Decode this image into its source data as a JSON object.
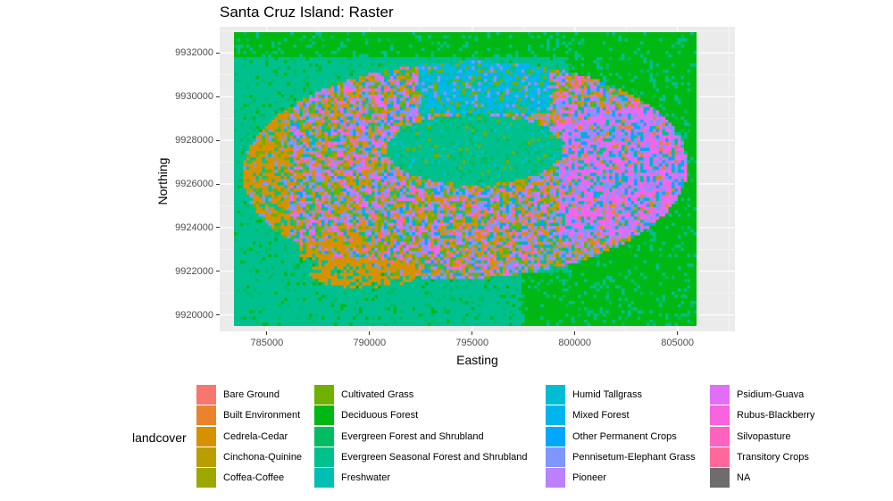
{
  "title": "Santa Cruz Island: Raster",
  "xlabel": "Easting",
  "ylabel": "Northing",
  "legend_title": "landcover",
  "axes": {
    "xlim": [
      782700,
      807800
    ],
    "ylim": [
      9919250,
      9933200
    ],
    "x_ticks": [
      785000,
      790000,
      795000,
      800000,
      805000
    ],
    "x_tick_labels": [
      "785000",
      "790000",
      "795000",
      "800000",
      "805000"
    ],
    "y_ticks": [
      9920000,
      9922000,
      9924000,
      9926000,
      9928000,
      9930000,
      9932000
    ],
    "y_tick_labels": [
      "9920000",
      "9922000",
      "9924000",
      "9926000",
      "9928000",
      "9930000",
      "9932000"
    ],
    "raster_extent": {
      "x": [
        783400,
        805800
      ],
      "y": [
        9919600,
        9932950
      ]
    }
  },
  "colors": {
    "panel_bg": "#ebebeb",
    "grid": "#ffffff"
  },
  "legend": [
    {
      "label": "Bare Ground",
      "color": "#F8766D"
    },
    {
      "label": "Built Environment",
      "color": "#E9842C"
    },
    {
      "label": "Cedrela-Cedar",
      "color": "#D69100"
    },
    {
      "label": "Cinchona-Quinine",
      "color": "#BC9D00"
    },
    {
      "label": "Coffea-Coffee",
      "color": "#9CA700"
    },
    {
      "label": "Cultivated Grass",
      "color": "#6FB000"
    },
    {
      "label": "Deciduous Forest",
      "color": "#00B813"
    },
    {
      "label": "Evergreen Forest and Shrubland",
      "color": "#00BD61"
    },
    {
      "label": "Evergreen Seasonal Forest and Shrubland",
      "color": "#00C08E"
    },
    {
      "label": "Freshwater",
      "color": "#00C0B4"
    },
    {
      "label": "Humid Tallgrass",
      "color": "#00BDD4"
    },
    {
      "label": "Mixed Forest",
      "color": "#00B5EE"
    },
    {
      "label": "Other Permanent Crops",
      "color": "#00A7FF"
    },
    {
      "label": "Pennisetum-Elephant Grass",
      "color": "#7F96FF"
    },
    {
      "label": "Pioneer",
      "color": "#BC81FF"
    },
    {
      "label": "Psidium-Guava",
      "color": "#E26EF7"
    },
    {
      "label": "Rubus-Blackberry",
      "color": "#F863DF"
    },
    {
      "label": "Silvopasture",
      "color": "#FF62BF"
    },
    {
      "label": "Transitory Crops",
      "color": "#FF6A9A"
    },
    {
      "label": "NA",
      "color": "#6D6D6D"
    }
  ]
}
